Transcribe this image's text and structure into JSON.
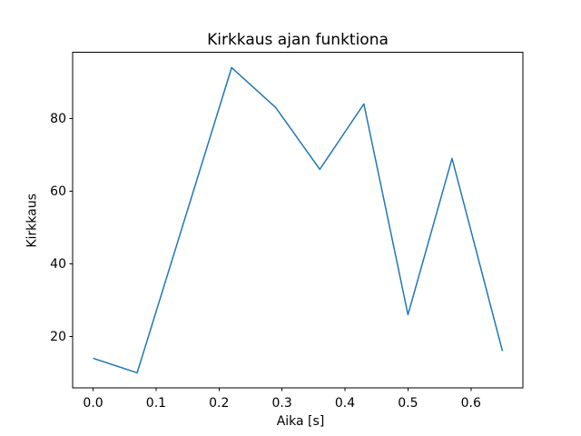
{
  "figure": {
    "background": "#ffffff",
    "plot_background": "#ffffff",
    "spine_color": "#000000",
    "tick_color": "#000000",
    "text_color": "#000000"
  },
  "chart_data": {
    "type": "line",
    "title": "Kirkkaus ajan funktiona",
    "xlabel": "Aika [s]",
    "ylabel": "Kirkkaus",
    "x": [
      0.0,
      0.07,
      0.22,
      0.29,
      0.36,
      0.43,
      0.5,
      0.57,
      0.65
    ],
    "y": [
      14,
      10,
      94,
      83,
      66,
      84,
      26,
      69,
      16
    ],
    "line_color": "#1f77b4",
    "line_width": 1.5,
    "xlim": [
      -0.0325,
      0.6825
    ],
    "ylim": [
      5.8,
      98.2
    ],
    "xticks": [
      0.0,
      0.1,
      0.2,
      0.3,
      0.4,
      0.5,
      0.6
    ],
    "xtick_labels": [
      "0.0",
      "0.1",
      "0.2",
      "0.3",
      "0.4",
      "0.5",
      "0.6"
    ],
    "yticks": [
      20,
      40,
      60,
      80
    ],
    "ytick_labels": [
      "20",
      "40",
      "60",
      "80"
    ],
    "grid": false,
    "markers": false
  }
}
